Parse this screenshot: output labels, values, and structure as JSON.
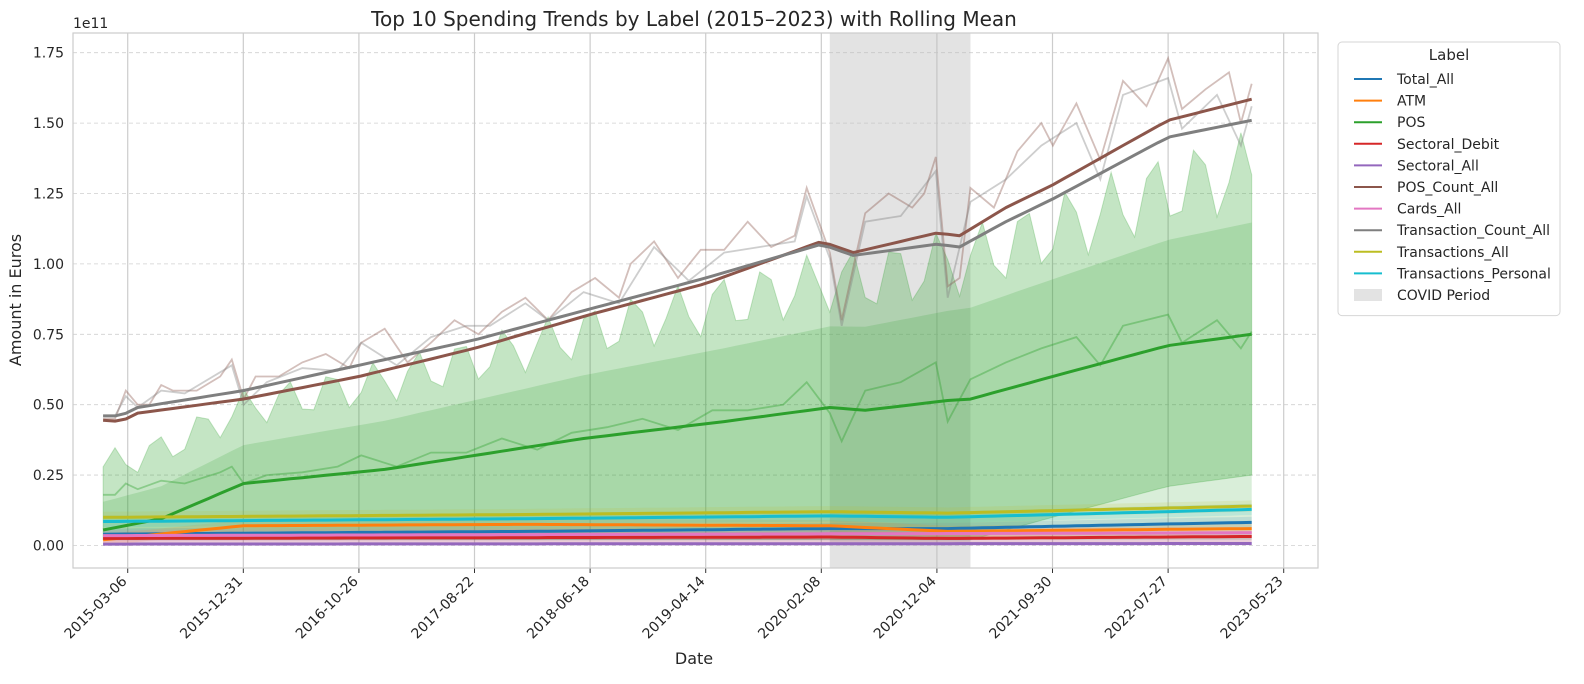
{
  "chart_data": {
    "type": "line",
    "title": "Top 10 Spending Trends by Label (2015–2023) with Rolling Mean",
    "xlabel": "Date",
    "ylabel": "Amount in Euros",
    "y_scale_label": "1e11",
    "y_multiplier": 100000000000,
    "xlim": [
      "2014-10-15",
      "2023-08-20"
    ],
    "ylim": [
      -0.08,
      1.82
    ],
    "x_ticks": [
      "2015-03-06",
      "2015-12-31",
      "2016-10-26",
      "2017-08-22",
      "2018-06-18",
      "2019-04-14",
      "2020-02-08",
      "2020-12-04",
      "2021-09-30",
      "2022-07-27",
      "2023-05-23"
    ],
    "y_ticks": [
      "0.00",
      "0.25",
      "0.50",
      "0.75",
      "1.00",
      "1.25",
      "1.50",
      "1.75"
    ],
    "grid": true,
    "legend": {
      "title": "Label",
      "placement": "outside-right"
    },
    "covid_period": {
      "label": "COVID Period",
      "start": "2020-03-01",
      "end": "2021-03-01",
      "color": "#bdbdbd"
    },
    "series": [
      {
        "name": "Total_All",
        "color": "#1f77b4",
        "keypoints": [
          [
            "2015-01-01",
            0.04
          ],
          [
            "2016-06-01",
            0.045
          ],
          [
            "2018-01-01",
            0.05
          ],
          [
            "2020-03-01",
            0.06
          ],
          [
            "2021-01-01",
            0.06
          ],
          [
            "2022-06-01",
            0.075
          ],
          [
            "2023-03-01",
            0.082
          ]
        ]
      },
      {
        "name": "ATM",
        "color": "#ff7f0e",
        "keypoints": [
          [
            "2015-01-01",
            0.02
          ],
          [
            "2015-12-31",
            0.07
          ],
          [
            "2018-01-01",
            0.075
          ],
          [
            "2020-03-01",
            0.07
          ],
          [
            "2021-01-01",
            0.05
          ],
          [
            "2023-03-01",
            0.06
          ]
        ]
      },
      {
        "name": "POS",
        "color": "#2ca02c",
        "band": true,
        "keypoints": [
          [
            "2015-01-01",
            0.055
          ],
          [
            "2015-06-01",
            0.095
          ],
          [
            "2015-12-31",
            0.22
          ],
          [
            "2017-01-01",
            0.27
          ],
          [
            "2018-06-01",
            0.38
          ],
          [
            "2019-06-01",
            0.44
          ],
          [
            "2020-03-01",
            0.49
          ],
          [
            "2020-06-01",
            0.48
          ],
          [
            "2021-01-01",
            0.515
          ],
          [
            "2021-03-01",
            0.52
          ],
          [
            "2021-09-30",
            0.6
          ],
          [
            "2022-07-27",
            0.71
          ],
          [
            "2023-03-01",
            0.75
          ]
        ]
      },
      {
        "name": "Sectoral_Debit",
        "color": "#d62728",
        "keypoints": [
          [
            "2015-01-01",
            0.025
          ],
          [
            "2018-01-01",
            0.028
          ],
          [
            "2020-03-01",
            0.03
          ],
          [
            "2021-01-01",
            0.025
          ],
          [
            "2023-03-01",
            0.032
          ]
        ]
      },
      {
        "name": "Sectoral_All",
        "color": "#9467bd",
        "keypoints": [
          [
            "2015-01-01",
            0.005
          ],
          [
            "2023-03-01",
            0.007
          ]
        ]
      },
      {
        "name": "POS_Count_All",
        "color": "#8c564b",
        "keypoints": [
          [
            "2015-01-01",
            0.445
          ],
          [
            "2015-02-15",
            0.44
          ],
          [
            "2015-04-01",
            0.47
          ],
          [
            "2015-12-31",
            0.52
          ],
          [
            "2016-10-26",
            0.6
          ],
          [
            "2017-08-22",
            0.7
          ],
          [
            "2018-06-18",
            0.82
          ],
          [
            "2019-04-14",
            0.93
          ],
          [
            "2020-02-08",
            1.08
          ],
          [
            "2020-05-01",
            1.04
          ],
          [
            "2020-12-04",
            1.11
          ],
          [
            "2021-02-01",
            1.1
          ],
          [
            "2021-06-01",
            1.2
          ],
          [
            "2021-09-30",
            1.28
          ],
          [
            "2022-07-27",
            1.51
          ],
          [
            "2023-03-01",
            1.585
          ]
        ]
      },
      {
        "name": "Cards_All",
        "color": "#e377c2",
        "keypoints": [
          [
            "2015-01-01",
            0.035
          ],
          [
            "2023-03-01",
            0.045
          ]
        ]
      },
      {
        "name": "Transaction_Count_All",
        "color": "#7f7f7f",
        "keypoints": [
          [
            "2015-01-01",
            0.46
          ],
          [
            "2015-02-15",
            0.46
          ],
          [
            "2015-04-01",
            0.49
          ],
          [
            "2015-12-31",
            0.55
          ],
          [
            "2016-10-26",
            0.64
          ],
          [
            "2017-08-22",
            0.73
          ],
          [
            "2018-06-18",
            0.84
          ],
          [
            "2019-04-14",
            0.95
          ],
          [
            "2020-02-08",
            1.07
          ],
          [
            "2020-05-01",
            1.03
          ],
          [
            "2020-12-04",
            1.07
          ],
          [
            "2021-02-01",
            1.06
          ],
          [
            "2021-06-01",
            1.15
          ],
          [
            "2021-09-30",
            1.23
          ],
          [
            "2022-07-27",
            1.45
          ],
          [
            "2023-03-01",
            1.51
          ]
        ]
      },
      {
        "name": "Transactions_All",
        "color": "#bcbd22",
        "keypoints": [
          [
            "2015-01-01",
            0.1
          ],
          [
            "2018-01-01",
            0.11
          ],
          [
            "2020-03-01",
            0.12
          ],
          [
            "2021-01-01",
            0.115
          ],
          [
            "2023-03-01",
            0.14
          ]
        ]
      },
      {
        "name": "Transactions_Personal",
        "color": "#17becf",
        "keypoints": [
          [
            "2015-01-01",
            0.085
          ],
          [
            "2018-01-01",
            0.095
          ],
          [
            "2020-03-01",
            0.105
          ],
          [
            "2021-01-01",
            0.1
          ],
          [
            "2023-03-01",
            0.128
          ]
        ]
      }
    ],
    "raw_overlays": [
      {
        "name": "POS_Count_All",
        "points": [
          [
            "2015-01-01",
            0.45
          ],
          [
            "2015-02-01",
            0.45
          ],
          [
            "2015-03-01",
            0.55
          ],
          [
            "2015-04-01",
            0.5
          ],
          [
            "2015-05-01",
            0.5
          ],
          [
            "2015-06-01",
            0.57
          ],
          [
            "2015-07-01",
            0.55
          ],
          [
            "2015-09-01",
            0.55
          ],
          [
            "2015-11-01",
            0.6
          ],
          [
            "2015-12-01",
            0.66
          ],
          [
            "2016-01-01",
            0.52
          ],
          [
            "2016-02-01",
            0.6
          ],
          [
            "2016-04-01",
            0.6
          ],
          [
            "2016-06-01",
            0.65
          ],
          [
            "2016-08-01",
            0.68
          ],
          [
            "2016-10-01",
            0.63
          ],
          [
            "2016-11-01",
            0.72
          ],
          [
            "2017-01-01",
            0.77
          ],
          [
            "2017-03-01",
            0.65
          ],
          [
            "2017-05-01",
            0.72
          ],
          [
            "2017-07-01",
            0.8
          ],
          [
            "2017-09-01",
            0.75
          ],
          [
            "2017-11-01",
            0.83
          ],
          [
            "2018-01-01",
            0.88
          ],
          [
            "2018-03-01",
            0.8
          ],
          [
            "2018-05-01",
            0.9
          ],
          [
            "2018-07-01",
            0.95
          ],
          [
            "2018-09-01",
            0.88
          ],
          [
            "2018-10-01",
            1.0
          ],
          [
            "2018-12-01",
            1.08
          ],
          [
            "2019-02-01",
            0.95
          ],
          [
            "2019-04-01",
            1.05
          ],
          [
            "2019-06-01",
            1.05
          ],
          [
            "2019-08-01",
            1.15
          ],
          [
            "2019-10-01",
            1.06
          ],
          [
            "2019-12-01",
            1.1
          ],
          [
            "2020-01-01",
            1.27
          ],
          [
            "2020-03-01",
            1.04
          ],
          [
            "2020-04-01",
            0.8
          ],
          [
            "2020-06-01",
            1.18
          ],
          [
            "2020-08-01",
            1.25
          ],
          [
            "2020-10-01",
            1.2
          ],
          [
            "2020-11-01",
            1.25
          ],
          [
            "2020-12-01",
            1.38
          ],
          [
            "2021-01-01",
            0.92
          ],
          [
            "2021-02-01",
            0.95
          ],
          [
            "2021-03-01",
            1.27
          ],
          [
            "2021-05-01",
            1.2
          ],
          [
            "2021-07-01",
            1.4
          ],
          [
            "2021-09-01",
            1.5
          ],
          [
            "2021-10-01",
            1.42
          ],
          [
            "2021-12-01",
            1.57
          ],
          [
            "2022-02-01",
            1.37
          ],
          [
            "2022-04-01",
            1.65
          ],
          [
            "2022-06-01",
            1.56
          ],
          [
            "2022-07-27",
            1.73
          ],
          [
            "2022-09-01",
            1.55
          ],
          [
            "2022-11-01",
            1.62
          ],
          [
            "2023-01-01",
            1.68
          ],
          [
            "2023-02-01",
            1.5
          ],
          [
            "2023-03-01",
            1.64
          ]
        ]
      },
      {
        "name": "Transaction_Count_All",
        "points": [
          [
            "2015-01-01",
            0.46
          ],
          [
            "2015-02-01",
            0.46
          ],
          [
            "2015-03-01",
            0.53
          ],
          [
            "2015-04-01",
            0.49
          ],
          [
            "2015-06-01",
            0.55
          ],
          [
            "2015-08-01",
            0.54
          ],
          [
            "2015-12-01",
            0.64
          ],
          [
            "2016-01-01",
            0.5
          ],
          [
            "2016-03-01",
            0.58
          ],
          [
            "2016-06-01",
            0.63
          ],
          [
            "2016-09-01",
            0.62
          ],
          [
            "2016-11-01",
            0.72
          ],
          [
            "2017-02-01",
            0.64
          ],
          [
            "2017-05-01",
            0.74
          ],
          [
            "2017-08-01",
            0.78
          ],
          [
            "2017-10-01",
            0.78
          ],
          [
            "2018-01-01",
            0.86
          ],
          [
            "2018-03-01",
            0.8
          ],
          [
            "2018-06-01",
            0.9
          ],
          [
            "2018-09-01",
            0.86
          ],
          [
            "2018-12-01",
            1.06
          ],
          [
            "2019-03-01",
            0.94
          ],
          [
            "2019-06-01",
            1.04
          ],
          [
            "2019-09-01",
            1.06
          ],
          [
            "2019-12-01",
            1.08
          ],
          [
            "2020-01-01",
            1.24
          ],
          [
            "2020-03-01",
            1.02
          ],
          [
            "2020-04-01",
            0.78
          ],
          [
            "2020-06-01",
            1.15
          ],
          [
            "2020-09-01",
            1.17
          ],
          [
            "2020-12-01",
            1.33
          ],
          [
            "2021-01-01",
            0.88
          ],
          [
            "2021-03-01",
            1.22
          ],
          [
            "2021-06-01",
            1.3
          ],
          [
            "2021-09-01",
            1.42
          ],
          [
            "2021-12-01",
            1.5
          ],
          [
            "2022-02-01",
            1.3
          ],
          [
            "2022-04-01",
            1.6
          ],
          [
            "2022-07-27",
            1.66
          ],
          [
            "2022-09-01",
            1.48
          ],
          [
            "2022-12-01",
            1.6
          ],
          [
            "2023-02-01",
            1.42
          ],
          [
            "2023-03-01",
            1.56
          ]
        ]
      },
      {
        "name": "POS",
        "points": [
          [
            "2015-01-01",
            0.18
          ],
          [
            "2015-02-01",
            0.18
          ],
          [
            "2015-03-01",
            0.22
          ],
          [
            "2015-04-01",
            0.2
          ],
          [
            "2015-06-01",
            0.23
          ],
          [
            "2015-08-01",
            0.22
          ],
          [
            "2015-11-01",
            0.26
          ],
          [
            "2015-12-01",
            0.28
          ],
          [
            "2016-01-01",
            0.22
          ],
          [
            "2016-03-01",
            0.25
          ],
          [
            "2016-06-01",
            0.26
          ],
          [
            "2016-09-01",
            0.28
          ],
          [
            "2016-11-01",
            0.32
          ],
          [
            "2017-02-01",
            0.28
          ],
          [
            "2017-05-01",
            0.33
          ],
          [
            "2017-08-01",
            0.33
          ],
          [
            "2017-11-01",
            0.38
          ],
          [
            "2018-02-01",
            0.34
          ],
          [
            "2018-05-01",
            0.4
          ],
          [
            "2018-08-01",
            0.42
          ],
          [
            "2018-11-01",
            0.45
          ],
          [
            "2019-02-01",
            0.41
          ],
          [
            "2019-05-01",
            0.48
          ],
          [
            "2019-08-01",
            0.48
          ],
          [
            "2019-11-01",
            0.5
          ],
          [
            "2020-01-01",
            0.58
          ],
          [
            "2020-03-01",
            0.47
          ],
          [
            "2020-04-01",
            0.37
          ],
          [
            "2020-06-01",
            0.55
          ],
          [
            "2020-09-01",
            0.58
          ],
          [
            "2020-12-01",
            0.65
          ],
          [
            "2021-01-01",
            0.44
          ],
          [
            "2021-03-01",
            0.59
          ],
          [
            "2021-06-01",
            0.65
          ],
          [
            "2021-09-01",
            0.7
          ],
          [
            "2021-12-01",
            0.74
          ],
          [
            "2022-02-01",
            0.64
          ],
          [
            "2022-04-01",
            0.78
          ],
          [
            "2022-07-27",
            0.82
          ],
          [
            "2022-09-01",
            0.72
          ],
          [
            "2022-12-01",
            0.8
          ],
          [
            "2023-02-01",
            0.7
          ],
          [
            "2023-03-01",
            0.76
          ]
        ]
      }
    ]
  }
}
